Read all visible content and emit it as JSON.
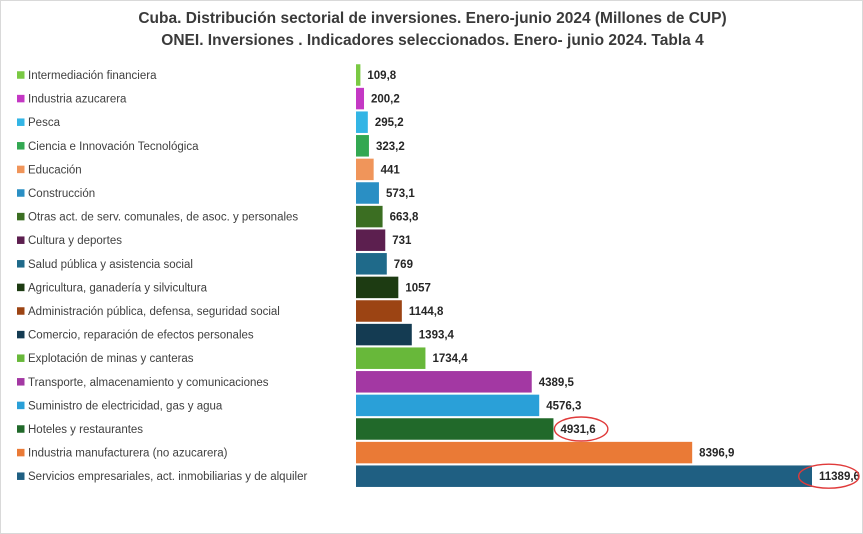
{
  "chart_data": {
    "type": "bar",
    "orientation": "horizontal",
    "title": "Cuba. Distribución sectorial de inversiones. Enero-junio 2024 (Millones de CUP)",
    "subtitle": "ONEI. Inversiones . Indicadores seleccionados. Enero- junio 2024. Tabla 4",
    "legend_placement": "left",
    "grid": false,
    "xlim": [
      0,
      11389.6
    ],
    "categories": [
      "Intermediación financiera",
      "Industria azucarera",
      "Pesca",
      "Ciencia e Innovación Tecnológica",
      "Educación",
      "Construcción",
      "Otras act. de serv. comunales, de asoc. y personales",
      "Cultura y deportes",
      "Salud pública y asistencia social",
      "Agricultura, ganadería y silvicultura",
      "Administración pública, defensa, seguridad social",
      "Comercio, reparación de efectos personales",
      "Explotación de minas y canteras",
      "Transporte, almacenamiento y comunicaciones",
      "Suministro de electricidad, gas y agua",
      "Hoteles y restaurantes",
      "Industria manufacturera (no azucarera)",
      "Servicios empresariales, act. inmobiliarias y de alquiler"
    ],
    "values": [
      109.8,
      200.2,
      295.2,
      323.2,
      441,
      573.1,
      663.8,
      731,
      769,
      1057,
      1144.8,
      1393.4,
      1734.4,
      4389.5,
      4576.3,
      4931.6,
      8396.9,
      11389.6
    ],
    "value_labels": [
      "109,8",
      "200,2",
      "295,2",
      "323,2",
      "441",
      "573,1",
      "663,8",
      "731",
      "769",
      "1057",
      "1144,8",
      "1393,4",
      "1734,4",
      "4389,5",
      "4576,3",
      "4931,6",
      "8396,9",
      "11389,6"
    ],
    "colors": [
      "#7ac943",
      "#c438c4",
      "#33b5e5",
      "#33a852",
      "#f0955a",
      "#2a8fc4",
      "#3b6e22",
      "#5c1f4f",
      "#1f6a8a",
      "#1d3b12",
      "#9c4413",
      "#143b52",
      "#68b83a",
      "#a338a3",
      "#2aa0d8",
      "#21692a",
      "#ea7a36",
      "#1f5f82"
    ],
    "highlighted": [
      "Hoteles y restaurantes",
      "Servicios empresariales, act. inmobiliarias y de alquiler"
    ],
    "highlight_color": "#e03a3a"
  }
}
